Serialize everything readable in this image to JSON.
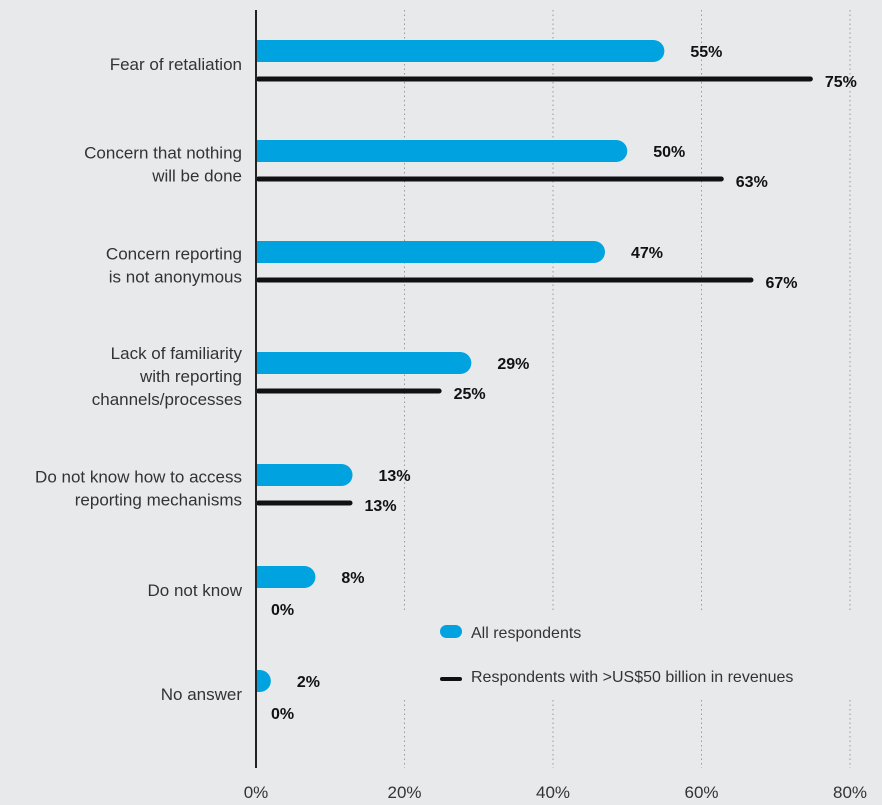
{
  "chart_data": {
    "type": "bar",
    "orientation": "horizontal",
    "categories": [
      [
        "Fear of retaliation"
      ],
      [
        "Concern that nothing",
        "will be done"
      ],
      [
        "Concern reporting",
        "is not anonymous"
      ],
      [
        "Lack of familiarity",
        "with reporting",
        "channels/processes"
      ],
      [
        "Do not know how to access",
        "reporting mechanisms"
      ],
      [
        "Do not know"
      ],
      [
        "No answer"
      ]
    ],
    "series": [
      {
        "name": "All respondents",
        "color": "#00a3e0",
        "style": "rounded-bar",
        "values": [
          55,
          50,
          47,
          29,
          13,
          8,
          2
        ],
        "labels": [
          "55%",
          "50%",
          "47%",
          "29%",
          "13%",
          "8%",
          "2%"
        ]
      },
      {
        "name": "Respondents with >US$50 billion in revenues",
        "color": "#111111",
        "style": "thin-line",
        "values": [
          75,
          63,
          67,
          25,
          13,
          0,
          0
        ],
        "labels": [
          "75%",
          "63%",
          "67%",
          "25%",
          "13%",
          "0%",
          "0%"
        ]
      }
    ],
    "x_ticks": [
      "0%",
      "20%",
      "40%",
      "60%",
      "80%"
    ],
    "xlim": [
      0,
      80
    ],
    "grid": "vertical-dotted",
    "legend_position": "bottom-right"
  }
}
